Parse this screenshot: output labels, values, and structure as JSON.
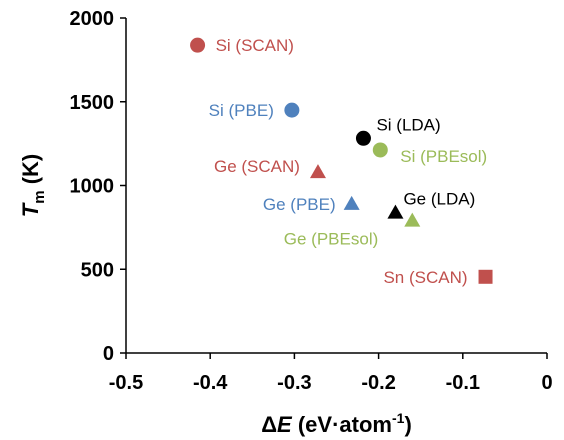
{
  "chart_data": {
    "type": "scatter",
    "xlim": [
      -0.5,
      0
    ],
    "ylim": [
      0,
      2000
    ],
    "xticks": [
      -0.5,
      -0.4,
      -0.3,
      -0.2,
      -0.1,
      0
    ],
    "xtick_labels": [
      "-0.5",
      "-0.4",
      "-0.3",
      "-0.2",
      "-0.1",
      "0"
    ],
    "yticks": [
      0,
      500,
      1000,
      1500,
      2000
    ],
    "ytick_labels": [
      "0",
      "500",
      "1000",
      "1500",
      "2000"
    ],
    "xlabel": {
      "prefix": "Δ",
      "var": "E",
      "units": " (eV·atom",
      "sup": "-1",
      "close": ")"
    },
    "ylabel": {
      "var": "T",
      "sub": "m",
      "units": " (K)"
    },
    "grid": false,
    "points": [
      {
        "label": "Si (SCAN)",
        "x": -0.415,
        "y": 1838,
        "marker": "circle",
        "color": "#c0504d"
      },
      {
        "label": "Si (PBE)",
        "x": -0.303,
        "y": 1450,
        "marker": "circle",
        "color": "#4f81bd"
      },
      {
        "label": "Si (LDA)",
        "x": -0.218,
        "y": 1282,
        "marker": "circle",
        "color": "#000000"
      },
      {
        "label": "Si (PBEsol)",
        "x": -0.198,
        "y": 1212,
        "marker": "circle",
        "color": "#9bbb59"
      },
      {
        "label": "Ge (SCAN)",
        "x": -0.272,
        "y": 1080,
        "marker": "triangle",
        "color": "#c0504d"
      },
      {
        "label": "Ge (PBE)",
        "x": -0.232,
        "y": 890,
        "marker": "triangle",
        "color": "#4f81bd"
      },
      {
        "label": "Ge (LDA)",
        "x": -0.18,
        "y": 838,
        "marker": "triangle",
        "color": "#000000"
      },
      {
        "label": "Ge (PBEsol)",
        "x": -0.16,
        "y": 790,
        "marker": "triangle",
        "color": "#9bbb59"
      },
      {
        "label": "Sn (SCAN)",
        "x": -0.073,
        "y": 455,
        "marker": "square",
        "color": "#c0504d"
      }
    ]
  }
}
